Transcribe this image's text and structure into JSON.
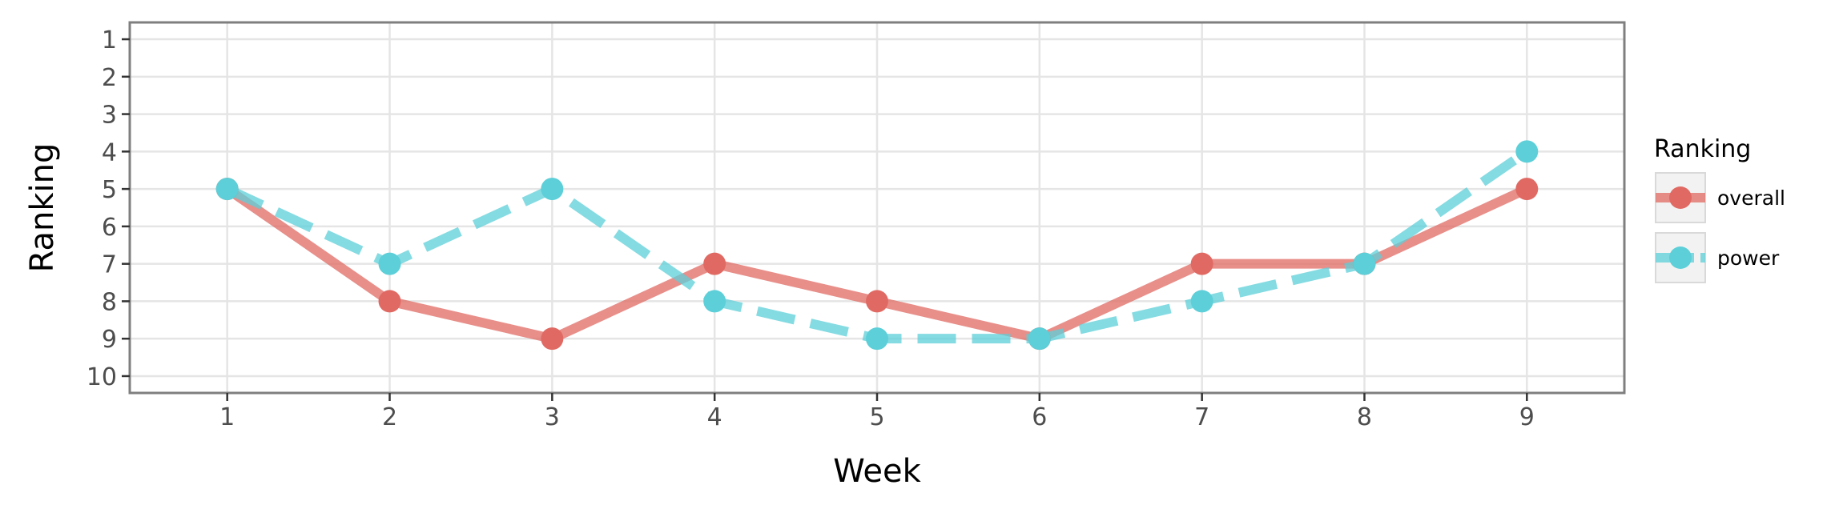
{
  "chart_data": {
    "type": "line",
    "xlabel": "Week",
    "ylabel": "Ranking",
    "x": [
      1,
      2,
      3,
      4,
      5,
      6,
      7,
      8,
      9
    ],
    "xlim": [
      0.4,
      9.6
    ],
    "ylim": [
      10.45,
      0.55
    ],
    "y_inverted": true,
    "y_ticks": [
      1,
      2,
      3,
      4,
      5,
      6,
      7,
      8,
      9,
      10
    ],
    "grid": true,
    "legend": {
      "title": "Ranking",
      "position": "right"
    },
    "series": [
      {
        "name": "overall",
        "values": [
          5,
          8,
          9,
          7,
          8,
          9,
          7,
          7,
          5
        ],
        "color": "#e06a63",
        "line_style": "solid"
      },
      {
        "name": "power",
        "values": [
          5,
          7,
          5,
          8,
          9,
          9,
          8,
          7,
          4
        ],
        "color": "#5ccfd8",
        "line_style": "dashed"
      }
    ]
  }
}
